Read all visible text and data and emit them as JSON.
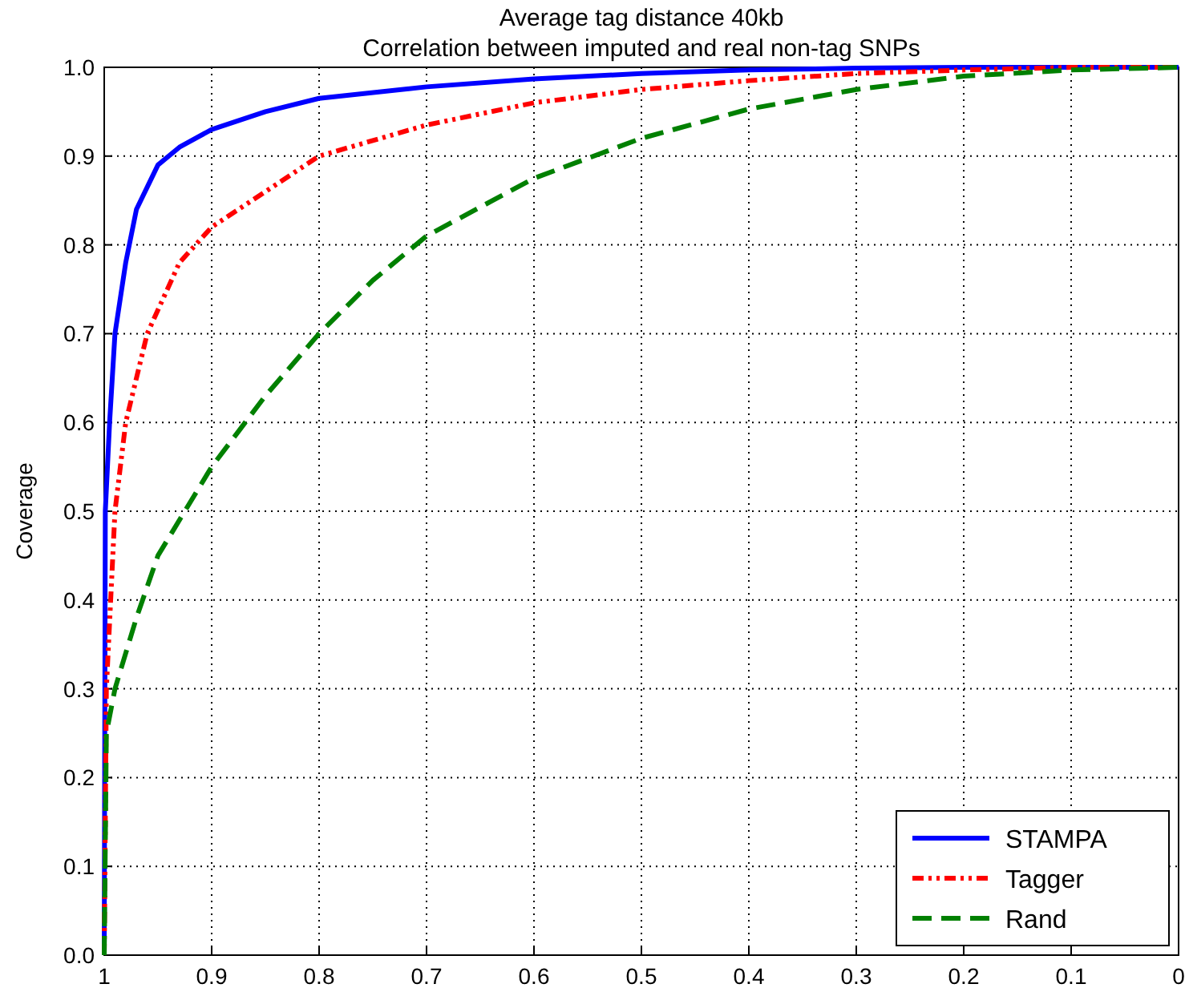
{
  "chart_data": {
    "type": "line",
    "title": "Average tag distance 40kb",
    "subtitle": "Correlation between imputed and real non-tag SNPs",
    "ylabel": "Coverage",
    "xlim": [
      1,
      0
    ],
    "xticks": [
      1,
      0.9,
      0.8,
      0.7,
      0.6,
      0.5,
      0.4,
      0.3,
      0.2,
      0.1,
      0
    ],
    "ylim": [
      0,
      1
    ],
    "yticks": [
      {
        "value": 0,
        "label": "0.0"
      },
      0.1,
      0.2,
      0.3,
      0.4,
      0.5,
      0.6,
      0.7,
      0.8,
      0.9,
      {
        "value": 1,
        "label": "1.0"
      }
    ],
    "grid": true,
    "legend": "bottom right",
    "marker": "none",
    "series": [
      {
        "name": "STAMPA",
        "color": "#0000ff",
        "line_style": "solid",
        "x": [
          1,
          0.999,
          0.995,
          0.99,
          0.98,
          0.97,
          0.95,
          0.93,
          0.9,
          0.85,
          0.8,
          0.7,
          0.6,
          0.5,
          0.4,
          0.3,
          0.2,
          0
        ],
        "values": [
          0,
          0.5,
          0.6,
          0.7,
          0.78,
          0.84,
          0.89,
          0.91,
          0.93,
          0.95,
          0.965,
          0.978,
          0.987,
          0.993,
          0.997,
          0.999,
          1,
          1
        ]
      },
      {
        "name": "Tagger",
        "color": "#ff0000",
        "line_style": "dotted",
        "x": [
          1,
          0.998,
          0.99,
          0.98,
          0.96,
          0.93,
          0.9,
          0.85,
          0.8,
          0.7,
          0.6,
          0.5,
          0.4,
          0.3,
          0.2,
          0.1,
          0
        ],
        "values": [
          0,
          0.3,
          0.5,
          0.6,
          0.7,
          0.78,
          0.82,
          0.86,
          0.9,
          0.935,
          0.96,
          0.975,
          0.985,
          0.993,
          0.997,
          1,
          1
        ]
      },
      {
        "name": "Rand",
        "color": "#008000",
        "line_style": "dashed",
        "x": [
          1,
          0.998,
          0.99,
          0.97,
          0.95,
          0.9,
          0.85,
          0.8,
          0.75,
          0.7,
          0.6,
          0.5,
          0.4,
          0.3,
          0.2,
          0.1,
          0
        ],
        "values": [
          0,
          0.25,
          0.3,
          0.38,
          0.45,
          0.55,
          0.63,
          0.7,
          0.76,
          0.81,
          0.875,
          0.92,
          0.953,
          0.975,
          0.99,
          0.997,
          1
        ]
      }
    ]
  }
}
